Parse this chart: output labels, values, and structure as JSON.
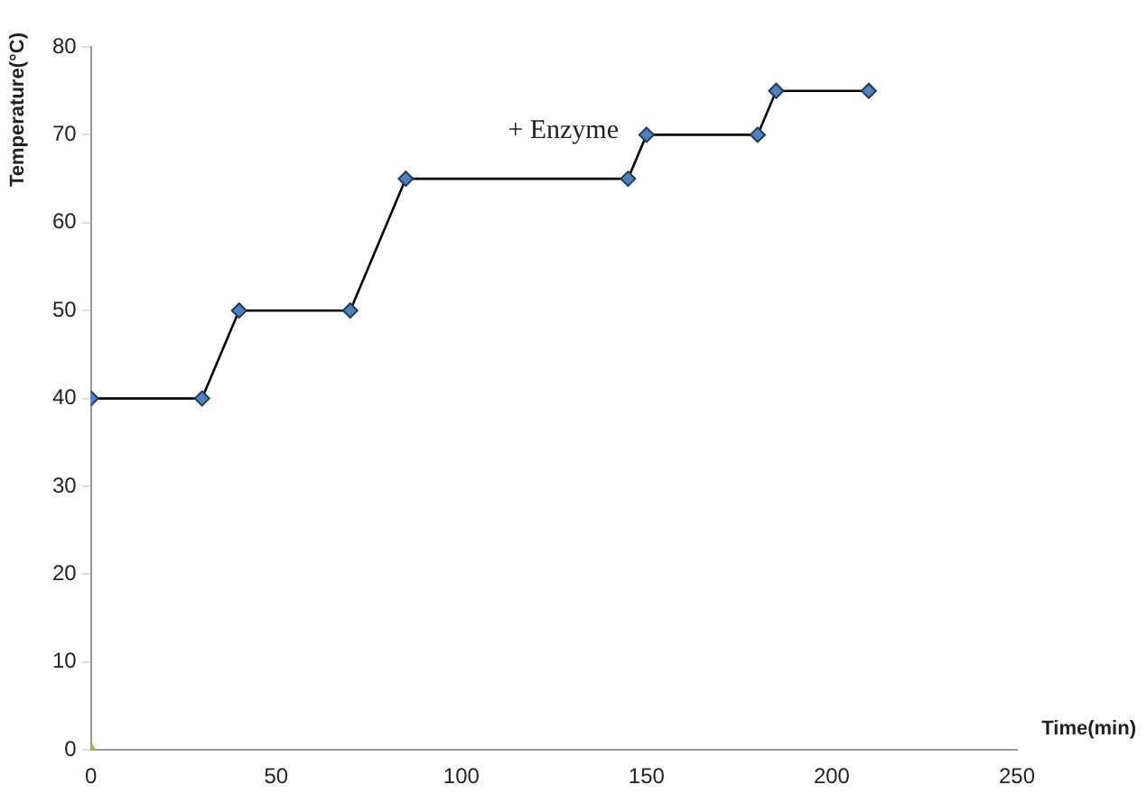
{
  "chart_data": {
    "type": "line",
    "xlabel": "Time(min)",
    "ylabel": "Temperature(°C)",
    "xlim": [
      0,
      250
    ],
    "xticks": [
      0,
      50,
      100,
      150,
      200,
      250
    ],
    "ylim": [
      0,
      80
    ],
    "yticks": [
      0,
      10,
      20,
      30,
      40,
      50,
      60,
      70,
      80
    ],
    "grid": false,
    "legend": false,
    "line_style": "solid",
    "series": [
      {
        "marker": "diamond",
        "color": "#4f81bd",
        "x": [
          0,
          30,
          40,
          70,
          85,
          145,
          150,
          180,
          185,
          210
        ],
        "values": [
          40,
          40,
          50,
          50,
          65,
          65,
          70,
          70,
          75,
          75
        ]
      },
      {
        "type": "scatter",
        "marker": "triangle",
        "color": "#9bbb59",
        "x": [
          0
        ],
        "values": [
          0
        ]
      }
    ],
    "annotations": [
      "+ Enzyme"
    ]
  }
}
